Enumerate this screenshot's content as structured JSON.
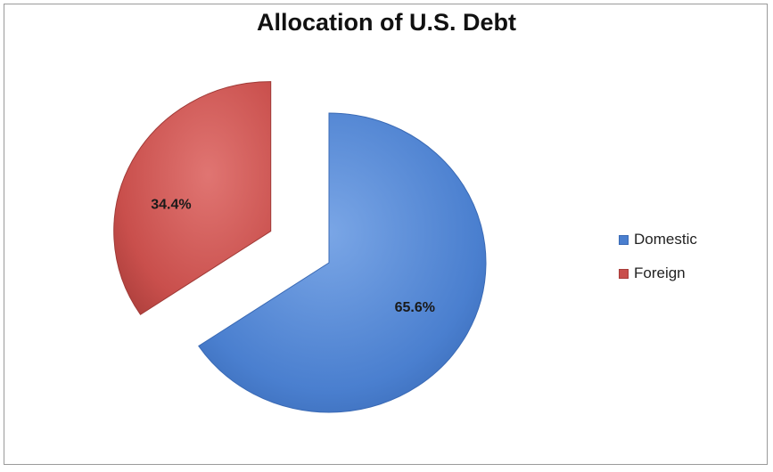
{
  "chart_data": {
    "type": "pie",
    "title": "Allocation of U.S. Debt",
    "categories": [
      "Domestic",
      "Foreign"
    ],
    "values": [
      65.6,
      34.4
    ],
    "data_labels": [
      "65.6%",
      "34.4%"
    ],
    "colors": [
      "#4a7fcf",
      "#c94f4c"
    ],
    "exploded": [
      "Foreign"
    ],
    "legend_position": "right"
  }
}
